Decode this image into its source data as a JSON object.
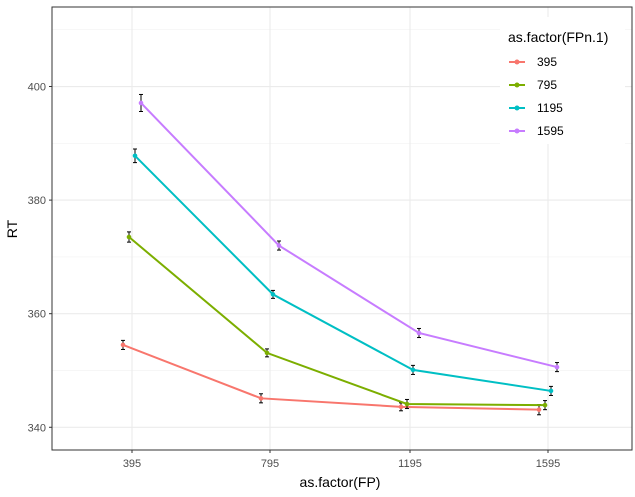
{
  "chart_data": {
    "type": "line",
    "xlabel": "as.factor(FP)",
    "ylabel": "RT",
    "categories": [
      "395",
      "795",
      "1195",
      "1595"
    ],
    "ylim": [
      336,
      414
    ],
    "y_ticks": [
      340,
      360,
      380,
      400
    ],
    "y_tick_labels": [
      "340",
      "360",
      "380",
      "400"
    ],
    "grid": true,
    "legend": {
      "title": "as.factor(FPn.1)",
      "position": "top-right"
    },
    "series": [
      {
        "name": "395",
        "color": "#F8766D",
        "values": [
          354.5,
          345.1,
          343.6,
          343.1
        ],
        "err_low": [
          353.7,
          344.3,
          342.9,
          342.2
        ],
        "err_high": [
          355.3,
          345.9,
          344.3,
          344.0
        ]
      },
      {
        "name": "795",
        "color": "#7CAE00",
        "values": [
          373.5,
          353.1,
          344.1,
          343.9
        ],
        "err_low": [
          372.6,
          352.4,
          343.3,
          343.1
        ],
        "err_high": [
          374.4,
          353.8,
          344.9,
          344.7
        ]
      },
      {
        "name": "1195",
        "color": "#00BFC4",
        "values": [
          387.8,
          363.4,
          350.1,
          346.4
        ],
        "err_low": [
          386.6,
          362.7,
          349.3,
          345.6
        ],
        "err_high": [
          389.0,
          364.1,
          350.9,
          347.2
        ]
      },
      {
        "name": "1595",
        "color": "#C77CFF",
        "values": [
          397.1,
          372.0,
          356.6,
          350.6
        ],
        "err_low": [
          395.6,
          371.2,
          355.8,
          349.8
        ],
        "err_high": [
          398.6,
          372.8,
          357.4,
          351.4
        ]
      }
    ]
  }
}
